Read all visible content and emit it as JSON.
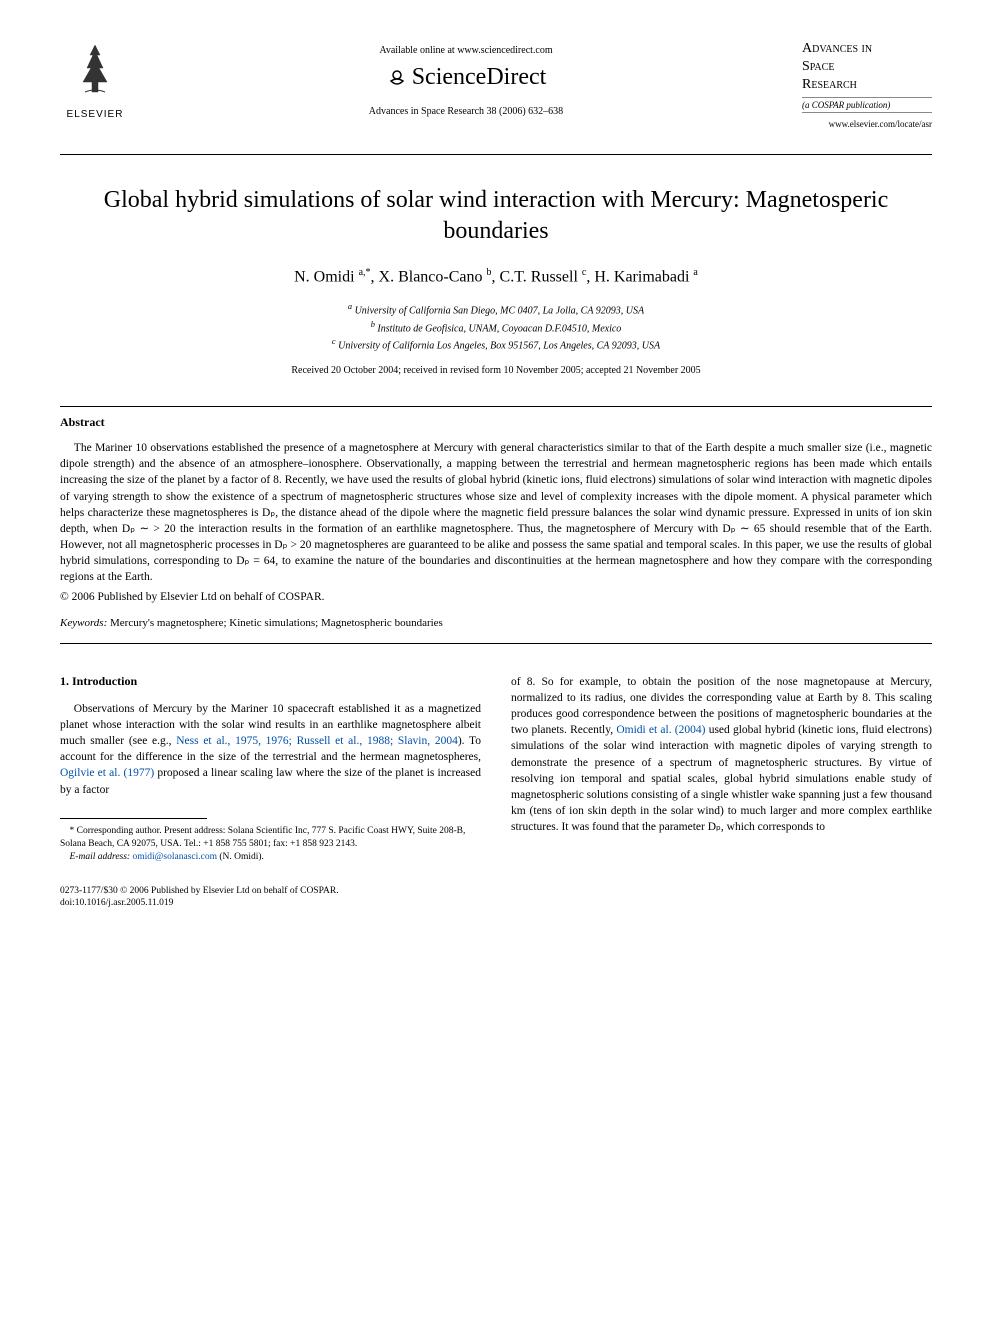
{
  "header": {
    "available_text": "Available online at www.sciencedirect.com",
    "sciencedirect": "ScienceDirect",
    "journal_ref": "Advances in Space Research 38 (2006) 632–638",
    "elsevier": "ELSEVIER",
    "journal_name_1": "Advances in",
    "journal_name_2": "Space",
    "journal_name_3": "Research",
    "cospar": "(a COSPAR publication)",
    "journal_url": "www.elsevier.com/locate/asr"
  },
  "title": "Global hybrid simulations of solar wind interaction with Mercury: Magnetosperic boundaries",
  "authors_html": "N. Omidi <sup>a,*</sup>, X. Blanco-Cano <sup>b</sup>, C.T. Russell <sup>c</sup>, H. Karimabadi <sup>a</sup>",
  "affiliations": {
    "a": "University of California San Diego, MC 0407, La Jolla, CA 92093, USA",
    "b": "Instituto de Geofisica, UNAM, Coyoacan D.F.04510, Mexico",
    "c": "University of California Los Angeles, Box 951567, Los Angeles, CA 92093, USA"
  },
  "dates": "Received 20 October 2004; received in revised form 10 November 2005; accepted 21 November 2005",
  "abstract": {
    "heading": "Abstract",
    "text": "The Mariner 10 observations established the presence of a magnetosphere at Mercury with general characteristics similar to that of the Earth despite a much smaller size (i.e., magnetic dipole strength) and the absence of an atmosphere–ionosphere. Observationally, a mapping between the terrestrial and hermean magnetospheric regions has been made which entails increasing the size of the planet by a factor of 8. Recently, we have used the results of global hybrid (kinetic ions, fluid electrons) simulations of solar wind interaction with magnetic dipoles of varying strength to show the existence of a spectrum of magnetospheric structures whose size and level of complexity increases with the dipole moment. A physical parameter which helps characterize these magnetospheres is Dₚ, the distance ahead of the dipole where the magnetic field pressure balances the solar wind dynamic pressure. Expressed in units of ion skin depth, when Dₚ ∼ > 20 the interaction results in the formation of an earthlike magnetosphere. Thus, the magnetosphere of Mercury with Dₚ ∼ 65 should resemble that of the Earth. However, not all magnetospheric processes in Dₚ > 20 magnetospheres are guaranteed to be alike and possess the same spatial and temporal scales. In this paper, we use the results of global hybrid simulations, corresponding to Dₚ = 64, to examine the nature of the boundaries and discontinuities at the hermean magnetosphere and how they compare with the corresponding regions at the Earth.",
    "copyright": "© 2006 Published by Elsevier Ltd on behalf of COSPAR."
  },
  "keywords": {
    "label": "Keywords:",
    "text": "Mercury's magnetosphere; Kinetic simulations; Magnetospheric boundaries"
  },
  "intro": {
    "heading": "1. Introduction",
    "col1_pre": "Observations of Mercury by the Mariner 10 spacecraft established it as a magnetized planet whose interaction with the solar wind results in an earthlike magnetosphere albeit much smaller (see e.g., ",
    "col1_ref1": "Ness et al., 1975, 1976; Russell et al., 1988; Slavin, 2004",
    "col1_mid1": "). To account for the difference in the size of the terrestrial and the hermean magnetospheres, ",
    "col1_ref2": "Ogilvie et al. (1977)",
    "col1_post": " proposed a linear scaling law where the size of the planet is increased by a factor",
    "col2_pre": "of 8. So for example, to obtain the position of the nose magnetopause at Mercury, normalized to its radius, one divides the corresponding value at Earth by 8. This scaling produces good correspondence between the positions of magnetospheric boundaries at the two planets. Recently, ",
    "col2_ref1": "Omidi et al. (2004)",
    "col2_post": " used global hybrid (kinetic ions, fluid electrons) simulations of the solar wind interaction with magnetic dipoles of varying strength to demonstrate the presence of a spectrum of magnetospheric structures. By virtue of resolving ion temporal and spatial scales, global hybrid simulations enable study of magnetospheric solutions consisting of a single whistler wake spanning just a few thousand km (tens of ion skin depth in the solar wind) to much larger and more complex earthlike structures. It was found that the parameter Dₚ, which corresponds to"
  },
  "footnote": {
    "corresponding": "* Corresponding author. Present address: Solana Scientific Inc, 777 S. Pacific Coast HWY, Suite 208-B, Solana Beach, CA 92075, USA. Tel.: +1 858 755 5801; fax: +1 858 923 2143.",
    "email_label": "E-mail address:",
    "email": "omidi@solanasci.com",
    "email_suffix": "(N. Omidi)."
  },
  "footer": {
    "line1": "0273-1177/$30 © 2006 Published by Elsevier Ltd on behalf of COSPAR.",
    "line2": "doi:10.1016/j.asr.2005.11.019"
  },
  "colors": {
    "link": "#0050aa",
    "text": "#000000",
    "bg": "#ffffff"
  }
}
